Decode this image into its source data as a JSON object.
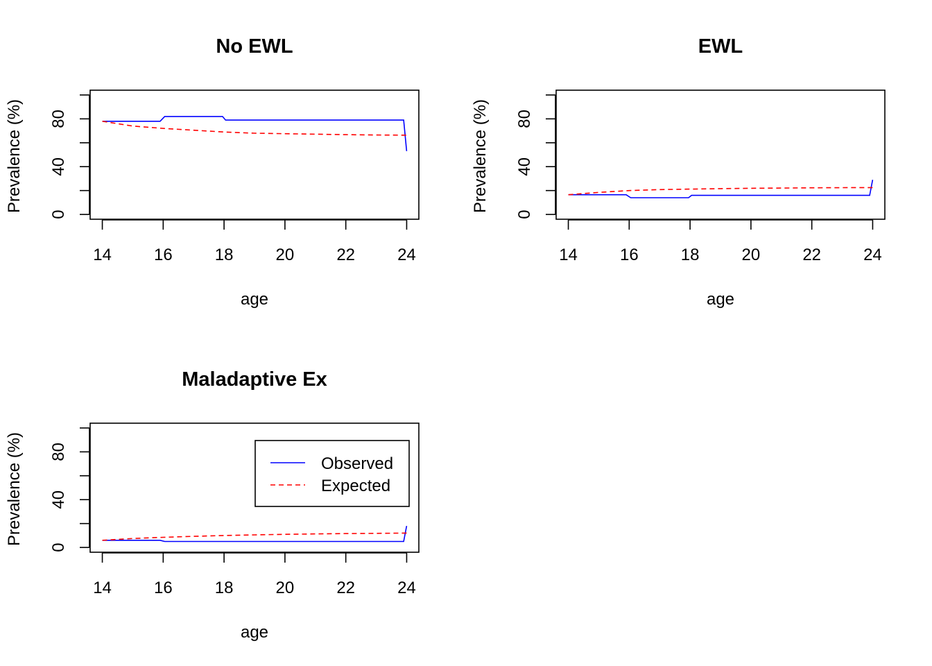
{
  "chart_data": [
    {
      "type": "line",
      "title": "No EWL",
      "xlabel": "age",
      "ylabel": "Prevalence (%)",
      "xlim": [
        13.6,
        24.4
      ],
      "ylim": [
        -4,
        104
      ],
      "x_ticks": [
        "14",
        "16",
        "18",
        "20",
        "22",
        "24"
      ],
      "y_ticks": [
        "0",
        "40",
        "80"
      ],
      "y_minor_ticks": [
        20,
        60,
        100
      ],
      "grid": false,
      "legend": null,
      "series": [
        {
          "name": "Observed",
          "color": "#0000FF",
          "dash": "solid",
          "x": [
            14,
            15.9,
            16.05,
            17.95,
            18.05,
            23.9,
            24
          ],
          "y": [
            78,
            78,
            82,
            82,
            79,
            79,
            53
          ]
        },
        {
          "name": "Expected",
          "color": "#FF0000",
          "dash": "dashed",
          "x": [
            14,
            15,
            16,
            17,
            18,
            19,
            20,
            21,
            22,
            23,
            24
          ],
          "y": [
            78,
            74,
            72,
            70.5,
            69,
            68,
            67.6,
            67.2,
            66.8,
            66.5,
            66.4
          ]
        }
      ]
    },
    {
      "type": "line",
      "title": "EWL",
      "xlabel": "age",
      "ylabel": "Prevalence (%)",
      "xlim": [
        13.6,
        24.4
      ],
      "ylim": [
        -4,
        104
      ],
      "x_ticks": [
        "14",
        "16",
        "18",
        "20",
        "22",
        "24"
      ],
      "y_ticks": [
        "0",
        "40",
        "80"
      ],
      "y_minor_ticks": [
        20,
        60,
        100
      ],
      "grid": false,
      "legend": null,
      "series": [
        {
          "name": "Observed",
          "color": "#0000FF",
          "dash": "solid",
          "x": [
            14,
            15.9,
            16.05,
            17.95,
            18.05,
            23.9,
            24
          ],
          "y": [
            16.5,
            16.5,
            14,
            14,
            16,
            16,
            29
          ]
        },
        {
          "name": "Expected",
          "color": "#FF0000",
          "dash": "dashed",
          "x": [
            14,
            15,
            16,
            17,
            18,
            19,
            20,
            21,
            22,
            23,
            24
          ],
          "y": [
            16.5,
            18.5,
            20,
            20.8,
            21.2,
            21.6,
            21.9,
            22.1,
            22.3,
            22.4,
            22.5
          ]
        }
      ]
    },
    {
      "type": "line",
      "title": "Maladaptive Ex",
      "xlabel": "age",
      "ylabel": "Prevalence (%)",
      "xlim": [
        13.6,
        24.4
      ],
      "ylim": [
        -4,
        104
      ],
      "x_ticks": [
        "14",
        "16",
        "18",
        "20",
        "22",
        "24"
      ],
      "y_ticks": [
        "0",
        "40",
        "80"
      ],
      "y_minor_ticks": [
        20,
        60,
        100
      ],
      "grid": false,
      "legend": {
        "position": "top-right",
        "entries": [
          {
            "label": "Observed",
            "color": "#0000FF",
            "dash": "solid"
          },
          {
            "label": "Expected",
            "color": "#FF0000",
            "dash": "dashed"
          }
        ]
      },
      "series": [
        {
          "name": "Observed",
          "color": "#0000FF",
          "dash": "solid",
          "x": [
            14,
            15.9,
            16.05,
            17.95,
            18.05,
            23.9,
            24
          ],
          "y": [
            6,
            6,
            5,
            5,
            5,
            5,
            18
          ]
        },
        {
          "name": "Expected",
          "color": "#FF0000",
          "dash": "dashed",
          "x": [
            14,
            15,
            16,
            17,
            18,
            19,
            20,
            21,
            22,
            23,
            24
          ],
          "y": [
            6,
            7.5,
            8.5,
            9.3,
            10,
            10.5,
            11,
            11.3,
            11.6,
            11.8,
            12
          ]
        }
      ]
    }
  ]
}
